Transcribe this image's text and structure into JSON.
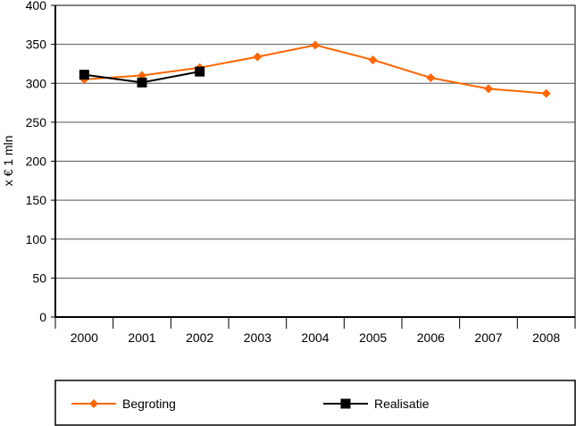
{
  "chart_data": {
    "type": "line",
    "title": "",
    "xlabel": "",
    "ylabel": "x € 1 mln",
    "ylim": [
      0,
      400
    ],
    "yticks": [
      0,
      50,
      100,
      150,
      200,
      250,
      300,
      350,
      400
    ],
    "categories": [
      "2000",
      "2001",
      "2002",
      "2003",
      "2004",
      "2005",
      "2006",
      "2007",
      "2008"
    ],
    "grid": true,
    "legend_position": "bottom",
    "series": [
      {
        "name": "Begroting",
        "color": "#ff6600",
        "marker": "diamond",
        "values": [
          305,
          310,
          320,
          334,
          349,
          330,
          307,
          293,
          287
        ]
      },
      {
        "name": "Realisatie",
        "color": "#000000",
        "marker": "square",
        "values": [
          311,
          301,
          315,
          null,
          null,
          null,
          null,
          null,
          null
        ]
      }
    ]
  }
}
